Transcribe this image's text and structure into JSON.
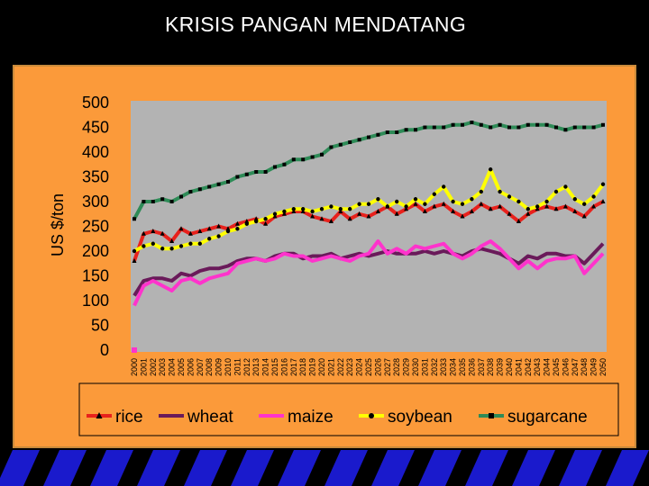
{
  "slide": {
    "title": "KRISIS PANGAN  MENDATANG"
  },
  "colors": {
    "background": "#000000",
    "panel": "#fb9a3a",
    "plot": "#b3b3b3",
    "stripe": "#1a1acc"
  },
  "chart_data": {
    "type": "line",
    "title": "",
    "xlabel": "",
    "ylabel": "US $/ton",
    "ylim": [
      0,
      500
    ],
    "yticks": [
      0,
      50,
      100,
      150,
      200,
      250,
      300,
      350,
      400,
      450,
      500
    ],
    "x": [
      "2000",
      "2001",
      "2002",
      "2003",
      "2004",
      "2005",
      "2006",
      "2007",
      "2008",
      "2009",
      "2010",
      "2011",
      "2012",
      "2013",
      "2014",
      "2015",
      "2016",
      "2017",
      "2018",
      "2019",
      "2020",
      "2021",
      "2022",
      "2023",
      "2024",
      "2025",
      "2026",
      "2027",
      "2028",
      "2029",
      "2030",
      "2031",
      "2032",
      "2033",
      "2034",
      "2035",
      "2036",
      "2037",
      "2038",
      "2039",
      "2040",
      "2041",
      "2042",
      "2043",
      "2044",
      "2045",
      "2046",
      "2047",
      "2048",
      "2049",
      "2050"
    ],
    "legend_position": "bottom",
    "grid": false,
    "outlier": {
      "x": "2000",
      "y": 0,
      "color": "#ff33cc"
    },
    "series": [
      {
        "name": "rice",
        "color": "#e8211c",
        "marker": "triangle",
        "values": [
          180,
          235,
          240,
          235,
          220,
          245,
          235,
          240,
          245,
          250,
          245,
          255,
          260,
          265,
          255,
          270,
          275,
          280,
          280,
          270,
          265,
          260,
          280,
          265,
          275,
          270,
          280,
          290,
          275,
          285,
          295,
          280,
          290,
          295,
          280,
          270,
          280,
          295,
          285,
          290,
          275,
          260,
          275,
          285,
          290,
          285,
          290,
          280,
          270,
          290,
          300
        ]
      },
      {
        "name": "wheat",
        "color": "#6a1a5a",
        "marker": "none",
        "values": [
          110,
          140,
          145,
          145,
          140,
          155,
          150,
          160,
          165,
          165,
          170,
          180,
          185,
          185,
          180,
          190,
          195,
          195,
          185,
          190,
          190,
          195,
          185,
          190,
          195,
          190,
          195,
          200,
          195,
          195,
          195,
          200,
          195,
          200,
          195,
          190,
          200,
          205,
          200,
          195,
          185,
          175,
          190,
          185,
          195,
          195,
          190,
          190,
          175,
          195,
          215
        ]
      },
      {
        "name": "maize",
        "color": "#ff33cc",
        "marker": "none",
        "values": [
          90,
          130,
          140,
          130,
          120,
          140,
          145,
          135,
          145,
          150,
          155,
          175,
          180,
          185,
          180,
          185,
          195,
          190,
          190,
          180,
          185,
          190,
          185,
          180,
          190,
          195,
          220,
          195,
          205,
          195,
          210,
          205,
          210,
          215,
          195,
          185,
          195,
          210,
          220,
          205,
          185,
          165,
          180,
          165,
          180,
          185,
          185,
          190,
          155,
          175,
          195
        ]
      },
      {
        "name": "soybean",
        "color": "#ffff00",
        "marker": "circle",
        "values": [
          200,
          210,
          215,
          205,
          205,
          210,
          215,
          215,
          225,
          230,
          240,
          245,
          255,
          260,
          265,
          275,
          280,
          285,
          285,
          280,
          285,
          290,
          285,
          285,
          295,
          295,
          305,
          290,
          300,
          290,
          305,
          295,
          315,
          330,
          300,
          295,
          305,
          320,
          365,
          320,
          310,
          300,
          285,
          290,
          300,
          320,
          330,
          305,
          295,
          310,
          335
        ]
      },
      {
        "name": "sugarcane",
        "color": "#2e8b57",
        "marker": "square",
        "values": [
          265,
          300,
          300,
          305,
          300,
          310,
          320,
          325,
          330,
          335,
          340,
          350,
          355,
          360,
          360,
          370,
          375,
          385,
          385,
          390,
          395,
          410,
          415,
          420,
          425,
          430,
          435,
          440,
          440,
          445,
          445,
          450,
          450,
          450,
          455,
          455,
          460,
          455,
          450,
          455,
          450,
          450,
          455,
          455,
          455,
          450,
          445,
          450,
          450,
          450,
          455
        ]
      }
    ]
  }
}
